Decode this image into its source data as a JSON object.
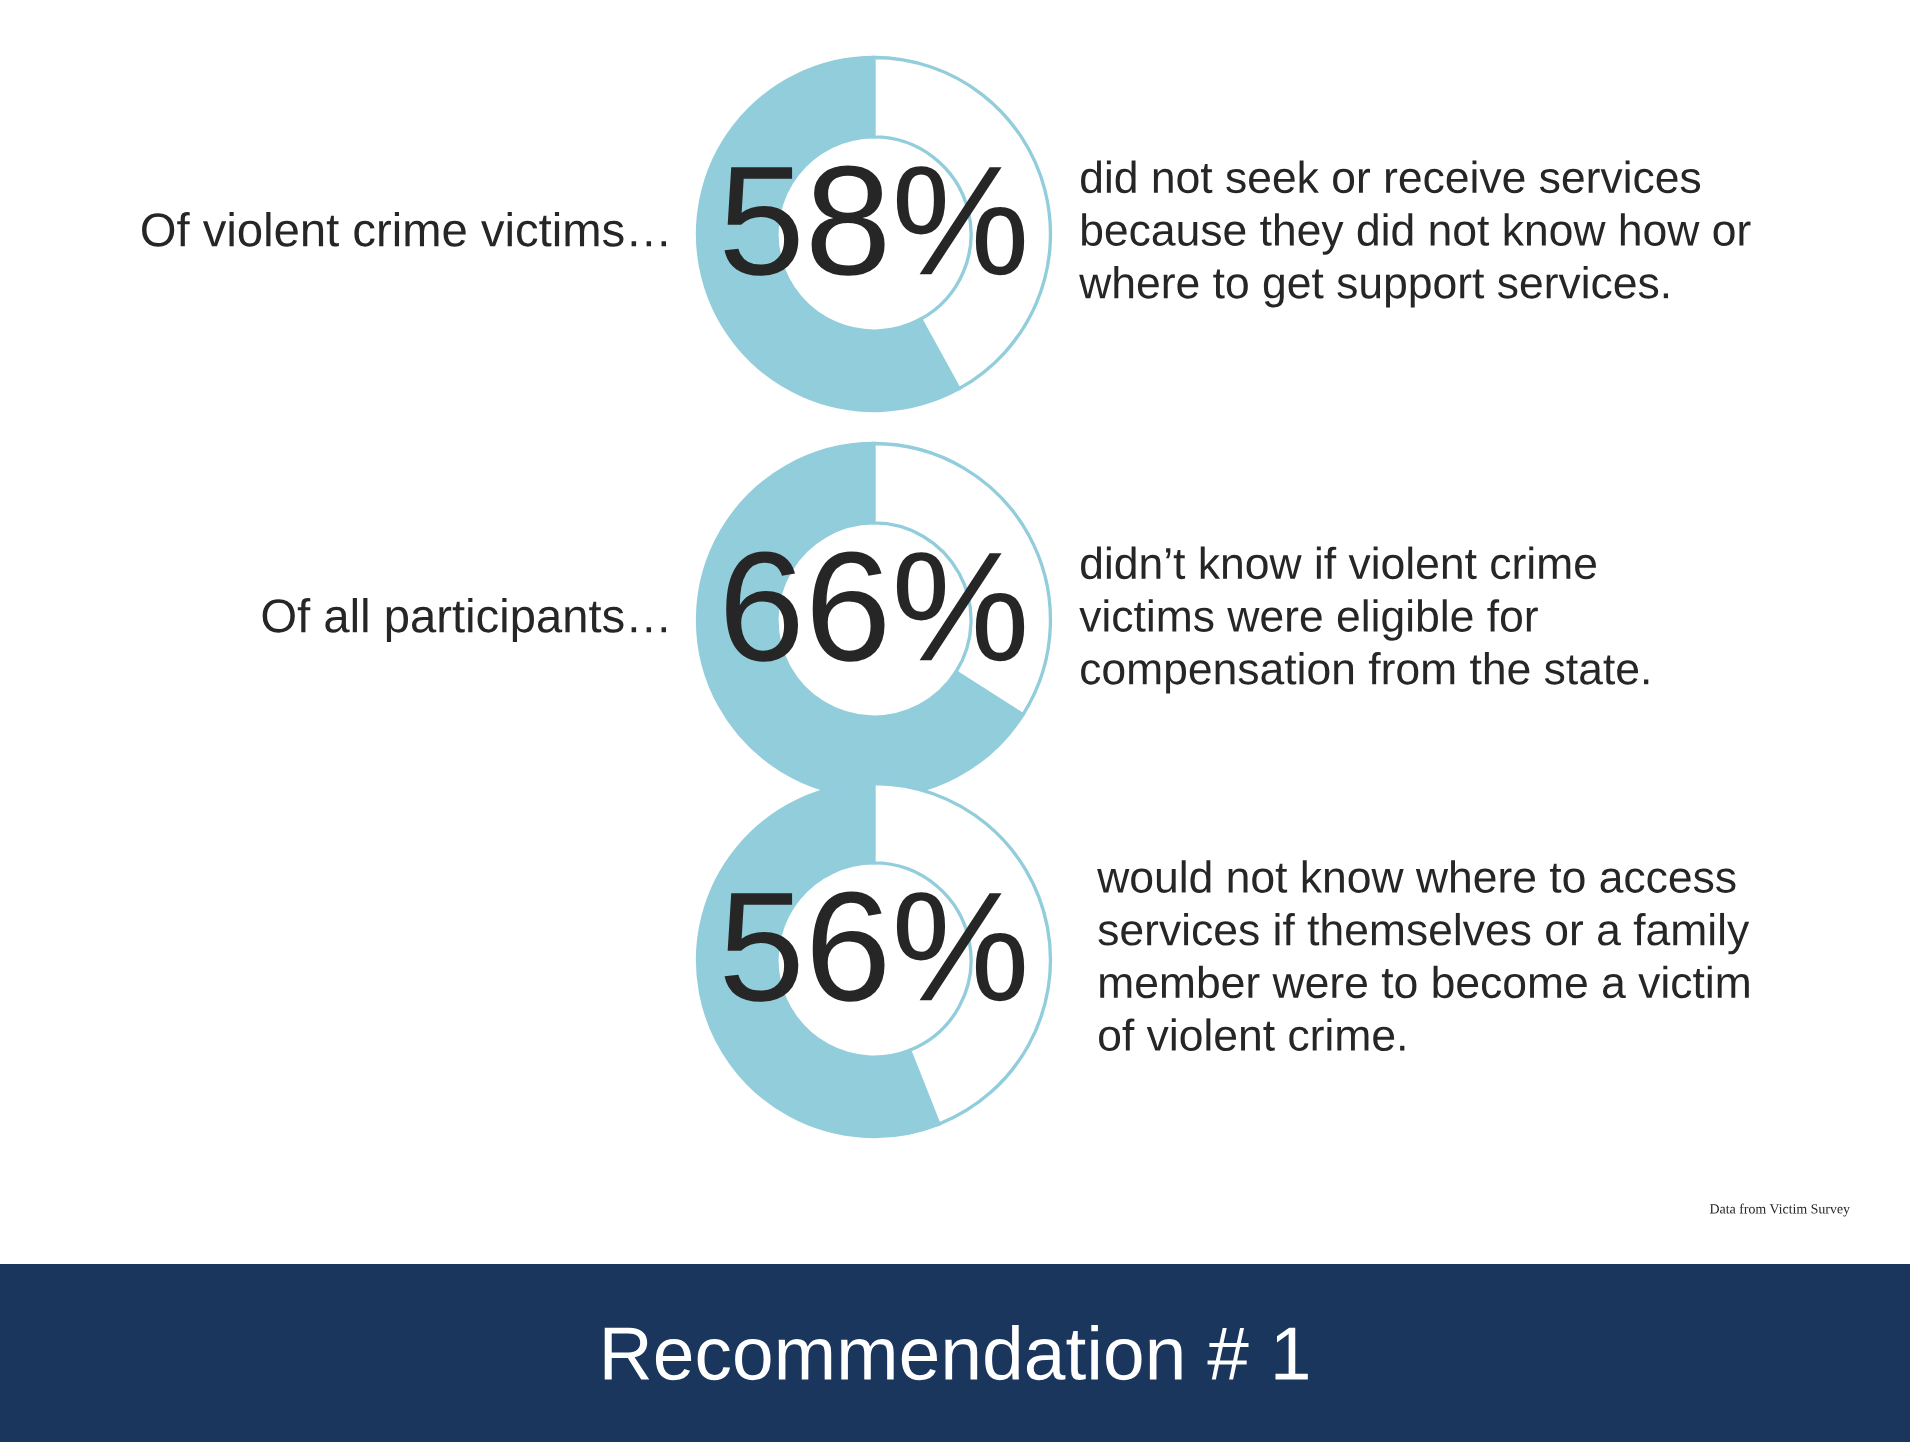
{
  "chart_data": [
    {
      "type": "donut",
      "title": "Of violent crime victims…",
      "categories": [
        null,
        null
      ],
      "values": [
        58,
        42
      ],
      "colors": [
        "#92cddc",
        "#ffffff"
      ],
      "value_labels": [
        "58%",
        null
      ],
      "annotations": [
        "did not seek or receive services\nbecause they did not know how or\nwhere to get support services."
      ]
    },
    {
      "type": "donut",
      "title": "Of all participants…",
      "categories": [
        null,
        null
      ],
      "values": [
        66,
        34
      ],
      "colors": [
        "#92cddc",
        "#ffffff"
      ],
      "value_labels": [
        "66%",
        null
      ],
      "annotations": [
        "didn’t know if violent crime\nvictims were eligible for\ncompensation from the state."
      ]
    },
    {
      "type": "donut",
      "categories": [
        null,
        null
      ],
      "values": [
        56,
        44
      ],
      "colors": [
        "#92cddc",
        "#ffffff"
      ],
      "value_labels": [
        "56%",
        null
      ],
      "annotations": [
        "would not know where to access\nservices if themselves or a family\nmember were to become a victim\nof violent crime.",
        "Data from Victim Survey",
        "Recommendation # 1"
      ]
    }
  ]
}
